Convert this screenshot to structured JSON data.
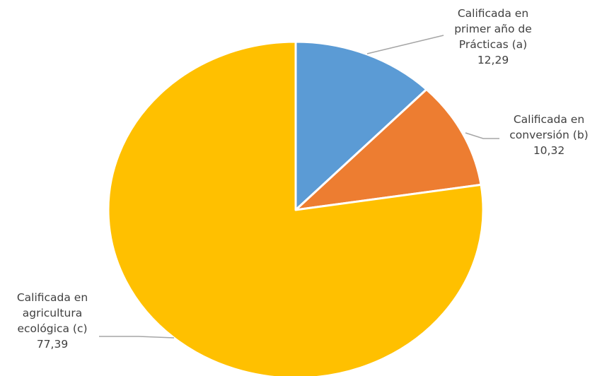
{
  "chart_data": {
    "type": "pie",
    "title": "",
    "start_angle_deg": 0,
    "direction": "clockwise",
    "slices": [
      {
        "label_lines": [
          "Calificada en",
          "primer año de",
          "Prácticas (a)"
        ],
        "value_label": "12,29",
        "value": 12.29,
        "color": "#5b9bd5"
      },
      {
        "label_lines": [
          "Calificada en",
          "conversión (b)"
        ],
        "value_label": "10,32",
        "value": 10.32,
        "color": "#ed7d31"
      },
      {
        "label_lines": [
          "Calificada en",
          "agricultura",
          "ecológica (c)"
        ],
        "value_label": "77,39",
        "value": 77.39,
        "color": "#ffc000"
      }
    ],
    "legend": "none",
    "slice_border_color": "#ffffff"
  }
}
